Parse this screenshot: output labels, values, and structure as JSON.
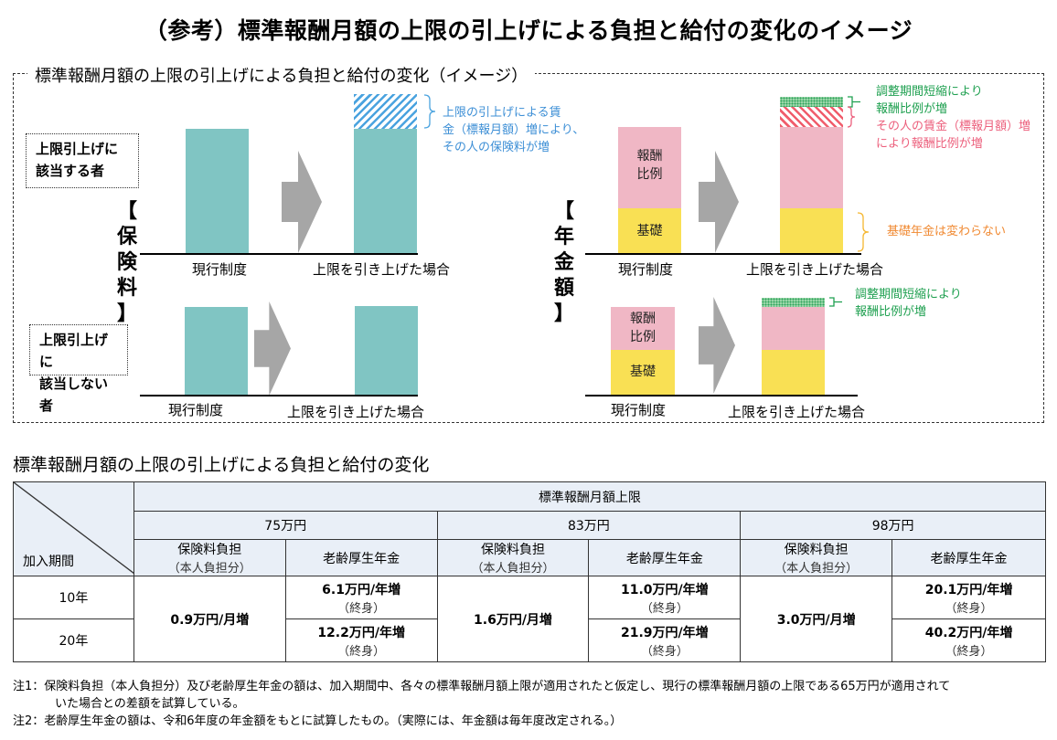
{
  "title": "（参考）標準報酬月額の上限の引上げによる負担と給付の変化のイメージ",
  "diagram": {
    "frame_title": "標準報酬月額の上限の引上げによる負担と給付の変化（イメージ）",
    "premium_section": {
      "vertical_label": "【保険料】",
      "group_applicable_label": "上限引上げに該当する者",
      "group_applicable_line1": "上限引上げに",
      "group_applicable_line2": "該当する者",
      "group_not_applicable_line1": "上限引上げに",
      "group_not_applicable_line2": "該当しない者",
      "x_label_current": "現行制度",
      "x_label_raised": "上限を引き上げた場合",
      "note_increase_lines": [
        "上限の引上げによる賃",
        "金（標報月額）増により、",
        "その人の保険料が増"
      ]
    },
    "pension_section": {
      "vertical_label": "【年金額】",
      "segment_earnings": "報酬比例",
      "segment_earnings_line1": "報酬",
      "segment_earnings_line2": "比例",
      "segment_basic": "基礎",
      "x_label_current": "現行制度",
      "x_label_raised": "上限を引き上げた場合",
      "note_adjust_lines": [
        "調整期間短縮により",
        "報酬比例が増"
      ],
      "note_wage_lines": [
        "その人の賃金（標報月額）増",
        "により報酬比例が増"
      ],
      "note_basic": "基礎年金は変わらない"
    },
    "colors": {
      "premium_bar": "#80c5c3",
      "premium_increase_hatch": "#4aa3df",
      "earnings_related": "#f0b7c5",
      "basic_pension": "#f9e054",
      "adjust_increase": "#2ca35a",
      "wage_increase_hatch": "#f05d6c",
      "arrow": "#a6a6a6"
    }
  },
  "table": {
    "section_title": "標準報酬月額の上限の引上げによる負担と給付の変化",
    "corner_label": "加入期間",
    "top_header": "標準報酬月額上限",
    "caps": [
      {
        "label": "75万円",
        "premium_header": "保険料負担",
        "premium_sub": "（本人負担分）",
        "pension_header": "老齢厚生年金",
        "premium_value": "0.9万円/月増",
        "pension_10y": "6.1万円/年増",
        "pension_20y": "12.2万円/年増",
        "lifetime": "（終身）"
      },
      {
        "label": "83万円",
        "premium_header": "保険料負担",
        "premium_sub": "（本人負担分）",
        "pension_header": "老齢厚生年金",
        "premium_value": "1.6万円/月増",
        "pension_10y": "11.0万円/年増",
        "pension_20y": "21.9万円/年増",
        "lifetime": "（終身）"
      },
      {
        "label": "98万円",
        "premium_header": "保険料負担",
        "premium_sub": "（本人負担分）",
        "pension_header": "老齢厚生年金",
        "premium_value": "3.0万円/月増",
        "pension_10y": "20.1万円/年増",
        "pension_20y": "40.2万円/年増",
        "lifetime": "（終身）"
      }
    ],
    "rows": [
      "10年",
      "20年"
    ]
  },
  "footnotes": {
    "note1_line1": "注1：保険料負担（本人負担分）及び老齢厚生年金の額は、加入期間中、各々の標準報酬月額上限が適用されたと仮定し、現行の標準報酬月額の上限である65万円が適用されて",
    "note1_line2": "いた場合との差額を試算している。",
    "note2": "注2：老齢厚生年金の額は、令和6年度の年金額をもとに試算したもの。（実際には、年金額は毎年度改定される。）"
  }
}
